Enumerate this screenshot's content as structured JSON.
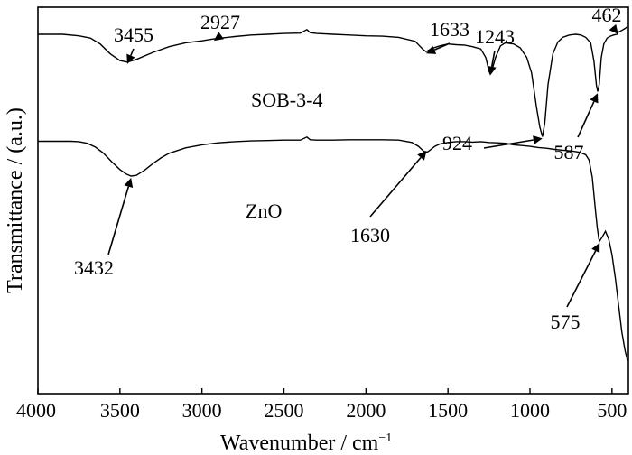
{
  "chart_data": {
    "type": "line",
    "xlabel": "Wavenumber / cm",
    "xlabel_superscript": "−1",
    "ylabel": "Transmittance / (a.u.)",
    "xlim": [
      4000,
      400
    ],
    "x_reversed": true,
    "y_ticks_shown": false,
    "grid": false,
    "x_ticks": [
      4000,
      3500,
      3000,
      2500,
      2000,
      1500,
      1000,
      500
    ],
    "x_tick_labels": [
      "4000",
      "3500",
      "3000",
      "2500",
      "2000",
      "1500",
      "1000",
      "500"
    ],
    "series": [
      {
        "name": "SOB-3-4",
        "color": "#000000",
        "points": [
          [
            4000,
            0.93
          ],
          [
            3850,
            0.93
          ],
          [
            3750,
            0.926
          ],
          [
            3680,
            0.92
          ],
          [
            3620,
            0.905
          ],
          [
            3560,
            0.88
          ],
          [
            3500,
            0.862
          ],
          [
            3455,
            0.858
          ],
          [
            3400,
            0.865
          ],
          [
            3300,
            0.883
          ],
          [
            3200,
            0.898
          ],
          [
            3100,
            0.908
          ],
          [
            3000,
            0.913
          ],
          [
            2927,
            0.918
          ],
          [
            2800,
            0.924
          ],
          [
            2700,
            0.928
          ],
          [
            2600,
            0.93
          ],
          [
            2500,
            0.932
          ],
          [
            2400,
            0.933
          ],
          [
            2360,
            0.942
          ],
          [
            2340,
            0.934
          ],
          [
            2300,
            0.932
          ],
          [
            2200,
            0.93
          ],
          [
            2100,
            0.928
          ],
          [
            2000,
            0.926
          ],
          [
            1900,
            0.925
          ],
          [
            1800,
            0.922
          ],
          [
            1700,
            0.912
          ],
          [
            1650,
            0.89
          ],
          [
            1633,
            0.885
          ],
          [
            1600,
            0.893
          ],
          [
            1550,
            0.9
          ],
          [
            1500,
            0.905
          ],
          [
            1450,
            0.903
          ],
          [
            1400,
            0.902
          ],
          [
            1350,
            0.898
          ],
          [
            1300,
            0.892
          ],
          [
            1270,
            0.87
          ],
          [
            1250,
            0.835
          ],
          [
            1243,
            0.828
          ],
          [
            1230,
            0.84
          ],
          [
            1210,
            0.87
          ],
          [
            1180,
            0.9
          ],
          [
            1150,
            0.908
          ],
          [
            1100,
            0.905
          ],
          [
            1060,
            0.895
          ],
          [
            1020,
            0.87
          ],
          [
            990,
            0.83
          ],
          [
            960,
            0.74
          ],
          [
            940,
            0.69
          ],
          [
            924,
            0.665
          ],
          [
            910,
            0.7
          ],
          [
            890,
            0.8
          ],
          [
            860,
            0.88
          ],
          [
            830,
            0.91
          ],
          [
            800,
            0.922
          ],
          [
            760,
            0.928
          ],
          [
            720,
            0.93
          ],
          [
            690,
            0.928
          ],
          [
            660,
            0.922
          ],
          [
            630,
            0.908
          ],
          [
            610,
            0.86
          ],
          [
            595,
            0.798
          ],
          [
            587,
            0.782
          ],
          [
            578,
            0.8
          ],
          [
            565,
            0.87
          ],
          [
            550,
            0.905
          ],
          [
            530,
            0.92
          ],
          [
            510,
            0.925
          ],
          [
            490,
            0.928
          ],
          [
            470,
            0.93
          ],
          [
            462,
            0.935
          ],
          [
            440,
            0.94
          ],
          [
            420,
            0.945
          ],
          [
            405,
            0.95
          ]
        ]
      },
      {
        "name": "ZnO",
        "color": "#000000",
        "points": [
          [
            4000,
            0.653
          ],
          [
            3900,
            0.653
          ],
          [
            3800,
            0.653
          ],
          [
            3750,
            0.652
          ],
          [
            3700,
            0.648
          ],
          [
            3650,
            0.638
          ],
          [
            3600,
            0.622
          ],
          [
            3550,
            0.6
          ],
          [
            3500,
            0.58
          ],
          [
            3460,
            0.568
          ],
          [
            3432,
            0.563
          ],
          [
            3400,
            0.565
          ],
          [
            3350,
            0.578
          ],
          [
            3300,
            0.595
          ],
          [
            3250,
            0.61
          ],
          [
            3200,
            0.622
          ],
          [
            3100,
            0.636
          ],
          [
            3000,
            0.644
          ],
          [
            2900,
            0.649
          ],
          [
            2800,
            0.652
          ],
          [
            2700,
            0.654
          ],
          [
            2600,
            0.655
          ],
          [
            2500,
            0.656
          ],
          [
            2400,
            0.656
          ],
          [
            2360,
            0.664
          ],
          [
            2340,
            0.657
          ],
          [
            2300,
            0.656
          ],
          [
            2200,
            0.656
          ],
          [
            2100,
            0.657
          ],
          [
            2000,
            0.657
          ],
          [
            1900,
            0.657
          ],
          [
            1800,
            0.656
          ],
          [
            1720,
            0.65
          ],
          [
            1680,
            0.64
          ],
          [
            1650,
            0.628
          ],
          [
            1630,
            0.624
          ],
          [
            1610,
            0.63
          ],
          [
            1580,
            0.64
          ],
          [
            1550,
            0.646
          ],
          [
            1500,
            0.65
          ],
          [
            1450,
            0.652
          ],
          [
            1400,
            0.652
          ],
          [
            1350,
            0.651
          ],
          [
            1300,
            0.652
          ],
          [
            1250,
            0.65
          ],
          [
            1200,
            0.649
          ],
          [
            1150,
            0.648
          ],
          [
            1100,
            0.644
          ],
          [
            1050,
            0.642
          ],
          [
            1000,
            0.64
          ],
          [
            950,
            0.637
          ],
          [
            900,
            0.635
          ],
          [
            850,
            0.632
          ],
          [
            800,
            0.63
          ],
          [
            750,
            0.628
          ],
          [
            700,
            0.625
          ],
          [
            660,
            0.618
          ],
          [
            640,
            0.605
          ],
          [
            620,
            0.56
          ],
          [
            600,
            0.47
          ],
          [
            590,
            0.43
          ],
          [
            580,
            0.4
          ],
          [
            575,
            0.395
          ],
          [
            560,
            0.405
          ],
          [
            540,
            0.42
          ],
          [
            520,
            0.4
          ],
          [
            500,
            0.36
          ],
          [
            480,
            0.3
          ],
          [
            460,
            0.23
          ],
          [
            440,
            0.16
          ],
          [
            420,
            0.11
          ],
          [
            405,
            0.085
          ]
        ]
      }
    ],
    "annotations": [
      {
        "label": "3455",
        "x": 3455,
        "series": 0
      },
      {
        "label": "2927",
        "x": 2927,
        "series": 0
      },
      {
        "label": "1633",
        "x": 1633,
        "series": 0
      },
      {
        "label": "1243",
        "x": 1243,
        "series": 0
      },
      {
        "label": "462",
        "x": 462,
        "series": 0
      },
      {
        "label": "924",
        "x": 924,
        "series": 0
      },
      {
        "label": "587",
        "x": 587,
        "series": 0
      },
      {
        "label": "3432",
        "x": 3432,
        "series": 1
      },
      {
        "label": "1630",
        "x": 1630,
        "series": 1
      },
      {
        "label": "575",
        "x": 575,
        "series": 1
      }
    ]
  }
}
